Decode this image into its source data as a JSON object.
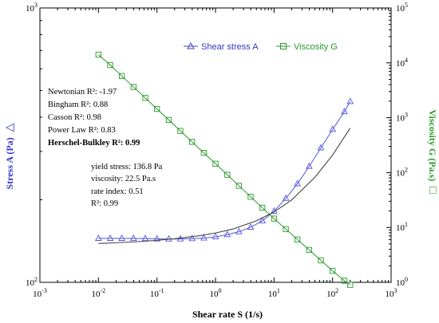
{
  "chart_data": {
    "type": "scatter",
    "x_scale": "log",
    "x_axis": {
      "label": "Shear rate  S  (1/s)",
      "lim": [
        0.001,
        1000
      ],
      "tick_mantissa": "10",
      "tick_exponents": [
        "-3",
        "-2",
        "-1",
        "0",
        "1",
        "2",
        "3"
      ]
    },
    "y_left": {
      "label_main": "Stress  A  (Pa)",
      "label_symbol": "△",
      "scale": "log",
      "lim": [
        100,
        1000
      ],
      "tick_mantissa": "10",
      "tick_exponents": [
        "2",
        "3"
      ],
      "color": "#3333cc"
    },
    "y_right": {
      "label_main": "Viscosity  G  (Pa.s)",
      "label_symbol": "□",
      "scale": "log",
      "lim": [
        1,
        100000
      ],
      "tick_mantissa": "10",
      "tick_exponents": [
        "0",
        "1",
        "2",
        "3",
        "4",
        "5"
      ],
      "color": "#2a9a2a"
    },
    "legend": {
      "position": "top-right",
      "entries": [
        {
          "label": "Shear stress  A",
          "marker": "triangle",
          "color": "#4444cc"
        },
        {
          "label": "Viscosity  G",
          "marker": "square",
          "color": "#2a9a2a"
        }
      ]
    },
    "series": [
      {
        "name": "Shear stress  A",
        "axis": "left",
        "marker": "triangle",
        "color": "#5555dd",
        "x": [
          0.01,
          0.0159,
          0.0251,
          0.0398,
          0.0631,
          0.1,
          0.159,
          0.251,
          0.398,
          0.631,
          1,
          1.59,
          2.51,
          3.98,
          6.31,
          10,
          15.9,
          25.1,
          39.8,
          63.1,
          100,
          159,
          200
        ],
        "y": [
          144.6,
          144.6,
          144.6,
          144.5,
          144.4,
          144.0,
          143.8,
          143.9,
          144.3,
          145.0,
          146.5,
          149.2,
          152.9,
          158.8,
          167.5,
          181.6,
          202.4,
          228.6,
          264.6,
          308.9,
          360.7,
          418.7,
          456
        ]
      },
      {
        "name": "Viscosity  G",
        "axis": "right",
        "marker": "square",
        "color": "#2a9a2a",
        "x": [
          0.01,
          0.0159,
          0.0251,
          0.0398,
          0.0631,
          0.1,
          0.159,
          0.251,
          0.398,
          0.631,
          1,
          1.59,
          2.51,
          3.98,
          6.31,
          10,
          15.9,
          25.1,
          39.8,
          63.1,
          100,
          159,
          200
        ],
        "y": [
          14125,
          9120,
          5754,
          3631,
          2291,
          1445,
          912,
          575,
          363,
          229,
          145,
          91.2,
          57.5,
          36.3,
          22.9,
          14.5,
          9.33,
          6.03,
          3.89,
          2.51,
          1.62,
          1.07,
          0.9
        ]
      },
      {
        "name": "",
        "axis": "left",
        "style": "line",
        "color": "#444444",
        "x": [
          0.01,
          0.02,
          0.05,
          0.1,
          0.2,
          0.5,
          1,
          2,
          5,
          10,
          20,
          50,
          100,
          200
        ],
        "y": [
          138.5,
          139.4,
          140.8,
          142.3,
          144.2,
          147.6,
          151.3,
          156.5,
          167.6,
          180.5,
          199.7,
          241.6,
          290.9,
          365.0
        ]
      }
    ],
    "annotations": {
      "fit_comparison": [
        {
          "text": "Newtonian R²: -1.97",
          "bold": false
        },
        {
          "text": "Bingham R²: 0.88",
          "bold": false
        },
        {
          "text": "Casson R²: 0.98",
          "bold": false
        },
        {
          "text": "Power Law R²: 0.83",
          "bold": false
        },
        {
          "text": "Herschel-Bulkley R²: 0.99",
          "bold": true
        }
      ],
      "hb_parameters": [
        {
          "text": "yield stress: 136.8 Pa"
        },
        {
          "text": "viscosity: 22.5 Pa.s"
        },
        {
          "text": "rate index: 0.51"
        },
        {
          "text": "R²: 0.99"
        }
      ]
    }
  }
}
